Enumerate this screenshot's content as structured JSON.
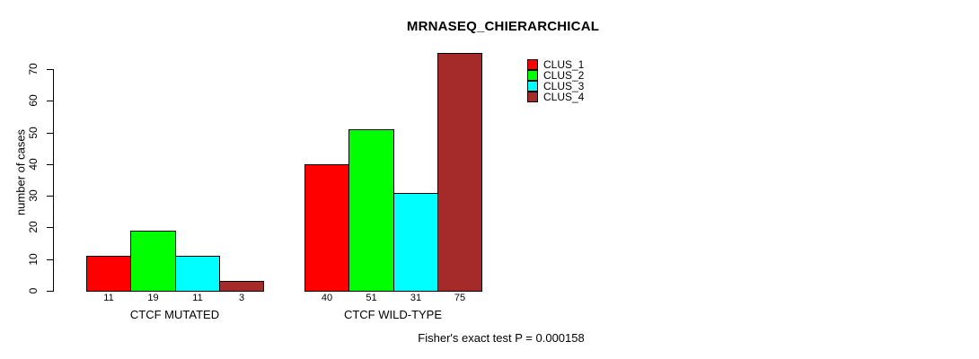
{
  "chart_data": {
    "type": "bar",
    "title": "MRNASEQ_CHIERARCHICAL",
    "ylabel": "number of cases",
    "xlabel": "",
    "ylim": [
      0,
      70
    ],
    "yticks": [
      0,
      10,
      20,
      30,
      40,
      50,
      60,
      70
    ],
    "grid": false,
    "categories": [
      "CTCF MUTATED",
      "CTCF WILD-TYPE"
    ],
    "series": [
      {
        "name": "CLUS_1",
        "color": "#ff0000",
        "values": [
          11,
          40
        ]
      },
      {
        "name": "CLUS_2",
        "color": "#00ff00",
        "values": [
          19,
          51
        ]
      },
      {
        "name": "CLUS_3",
        "color": "#00ffff",
        "values": [
          11,
          31
        ]
      },
      {
        "name": "CLUS_4",
        "color": "#a52a2a",
        "values": [
          3,
          75
        ]
      }
    ],
    "bar_value_labels_shown": true,
    "legend": {
      "position": "top-right",
      "items": [
        "CLUS_1",
        "CLUS_2",
        "CLUS_3",
        "CLUS_4"
      ]
    },
    "footer": "Fisher's exact test P = 0.000158"
  },
  "colors": {
    "background": "#ffffff",
    "axis": "#000000",
    "text": "#000000"
  }
}
